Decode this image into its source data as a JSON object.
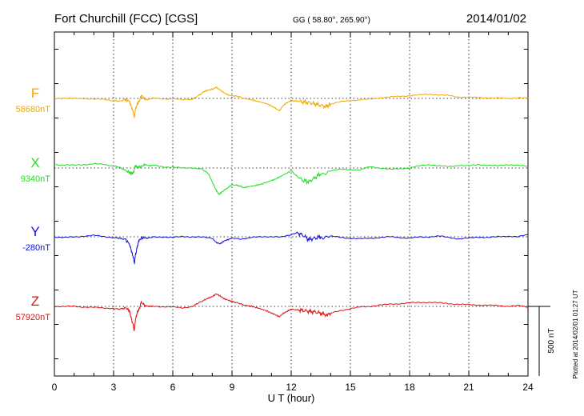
{
  "header": {
    "station": "Fort Churchill (FCC)  [CGS]",
    "coords": "GG ( 58.80°, 265.90°)",
    "date": "2014/01/02"
  },
  "side_note": "Plotted at 2014/02/01 01:27 UT",
  "chart_data": {
    "type": "line",
    "title": "Fort Churchill (FCC)  [CGS]",
    "xlabel": "U T (hour)",
    "ylabel": "",
    "xlim": [
      0,
      24
    ],
    "x_ticks": [
      0,
      3,
      6,
      9,
      12,
      15,
      18,
      21,
      24
    ],
    "x_tick_labels": [
      "0",
      "3",
      "6",
      "9",
      "12",
      "15",
      "18",
      "21",
      "24"
    ],
    "grid": true,
    "scale_bar": {
      "value": 500,
      "label": "500 nT"
    },
    "series": [
      {
        "name": "F",
        "baseline_label": "58680nT",
        "baseline": 58680,
        "color": "#f0a800",
        "x": [
          0,
          0.5,
          1,
          1.5,
          2,
          2.5,
          3,
          3.3,
          3.6,
          3.8,
          3.9,
          4.0,
          4.05,
          4.1,
          4.2,
          4.3,
          4.4,
          4.6,
          4.8,
          5,
          5.5,
          6,
          6.5,
          7,
          7.3,
          7.6,
          7.8,
          8.0,
          8.2,
          8.4,
          8.6,
          8.8,
          9.0,
          9.3,
          9.6,
          10,
          10.4,
          10.8,
          11.2,
          11.4,
          11.6,
          11.8,
          12,
          12.3,
          12.6,
          12.9,
          13.2,
          13.5,
          13.8,
          14,
          14.5,
          15,
          15.5,
          16,
          16.5,
          17,
          17.5,
          18,
          18.5,
          19,
          19.5,
          20,
          20.5,
          21,
          21.5,
          22,
          22.5,
          23,
          23.5,
          24
        ],
        "values": [
          58680,
          58682,
          58678,
          58680,
          58676,
          58672,
          58665,
          58660,
          58670,
          58660,
          58620,
          58580,
          58540,
          58600,
          58640,
          58660,
          58700,
          58670,
          58675,
          58680,
          58676,
          58678,
          58670,
          58675,
          58700,
          58730,
          58740,
          58745,
          58760,
          58740,
          58720,
          58705,
          58700,
          58695,
          58680,
          58670,
          58655,
          58640,
          58610,
          58590,
          58630,
          58650,
          58665,
          58660,
          58655,
          58650,
          58640,
          58630,
          58620,
          58640,
          58655,
          58665,
          58670,
          58675,
          58685,
          58690,
          58695,
          58700,
          58705,
          58710,
          58705,
          58700,
          58690,
          58688,
          58685,
          58684,
          58682,
          58680,
          58685,
          58680
        ]
      },
      {
        "name": "X",
        "baseline_label": "9340nT",
        "baseline": 9340,
        "color": "#22dd22",
        "x": [
          0,
          0.5,
          1,
          1.5,
          2,
          2.5,
          3,
          3.3,
          3.6,
          3.8,
          3.9,
          4.0,
          4.05,
          4.1,
          4.2,
          4.4,
          4.6,
          4.8,
          5,
          5.5,
          6,
          6.5,
          7,
          7.5,
          7.8,
          8.0,
          8.2,
          8.35,
          8.5,
          8.8,
          9.0,
          9.3,
          9.6,
          10,
          10.4,
          10.8,
          11.2,
          11.6,
          12,
          12.3,
          12.6,
          12.9,
          13.2,
          13.5,
          14,
          14.5,
          15,
          15.5,
          16,
          16.5,
          17,
          17.5,
          18,
          18.5,
          19,
          19.5,
          20,
          20.5,
          21,
          21.5,
          22,
          22.5,
          23,
          23.5,
          24
        ],
        "values": [
          9365,
          9362,
          9360,
          9365,
          9370,
          9365,
          9355,
          9345,
          9320,
          9310,
          9300,
          9305,
          9330,
          9360,
          9345,
          9350,
          9365,
          9355,
          9360,
          9350,
          9345,
          9340,
          9342,
          9330,
          9300,
          9240,
          9180,
          9150,
          9170,
          9200,
          9220,
          9215,
          9200,
          9210,
          9220,
          9240,
          9260,
          9290,
          9320,
          9280,
          9250,
          9240,
          9270,
          9300,
          9320,
          9330,
          9330,
          9325,
          9350,
          9340,
          9330,
          9335,
          9340,
          9355,
          9365,
          9355,
          9350,
          9360,
          9355,
          9365,
          9360,
          9355,
          9365,
          9360,
          9350
        ]
      },
      {
        "name": "Y",
        "baseline_label": "-280nT",
        "baseline": -280,
        "color": "#1010dd",
        "x": [
          0,
          0.5,
          1,
          1.5,
          2,
          2.5,
          3,
          3.3,
          3.6,
          3.8,
          3.9,
          4.0,
          4.05,
          4.1,
          4.2,
          4.3,
          4.5,
          4.7,
          5,
          5.5,
          6,
          6.5,
          7,
          7.5,
          8.0,
          8.2,
          8.4,
          8.6,
          8.8,
          9.0,
          9.5,
          10,
          10.5,
          11,
          11.5,
          12,
          12.3,
          12.6,
          12.9,
          13.2,
          13.5,
          14,
          14.5,
          15,
          15.5,
          16,
          16.5,
          17,
          17.5,
          18,
          18.5,
          19,
          19.5,
          20,
          20.5,
          21,
          21.5,
          22,
          22.5,
          23,
          23.5,
          24
        ],
        "values": [
          -280,
          -285,
          -282,
          -275,
          -270,
          -278,
          -285,
          -290,
          -300,
          -330,
          -380,
          -430,
          -470,
          -420,
          -350,
          -300,
          -285,
          -290,
          -282,
          -280,
          -285,
          -278,
          -280,
          -283,
          -290,
          -320,
          -330,
          -310,
          -300,
          -290,
          -295,
          -285,
          -280,
          -278,
          -283,
          -265,
          -250,
          -270,
          -300,
          -290,
          -280,
          -275,
          -285,
          -290,
          -295,
          -290,
          -285,
          -280,
          -285,
          -290,
          -282,
          -280,
          -275,
          -285,
          -295,
          -290,
          -282,
          -285,
          -280,
          -275,
          -280,
          -265
        ]
      },
      {
        "name": "Z",
        "baseline_label": "57920nT",
        "baseline": 57920,
        "color": "#e01010",
        "x": [
          0,
          0.5,
          1,
          1.5,
          2,
          2.5,
          3,
          3.3,
          3.6,
          3.8,
          3.9,
          4.0,
          4.05,
          4.1,
          4.2,
          4.3,
          4.4,
          4.6,
          4.8,
          5,
          5.5,
          6,
          6.5,
          7,
          7.3,
          7.6,
          7.8,
          8.0,
          8.2,
          8.4,
          8.6,
          8.8,
          9.0,
          9.3,
          9.6,
          10,
          10.4,
          10.8,
          11.2,
          11.4,
          11.6,
          11.8,
          12,
          12.3,
          12.6,
          12.9,
          13.2,
          13.5,
          13.8,
          14,
          14.5,
          15,
          15.5,
          16,
          16.5,
          17,
          17.5,
          18,
          18.5,
          19,
          19.5,
          20,
          20.5,
          21,
          21.5,
          22,
          22.5,
          23,
          23.5,
          24
        ],
        "values": [
          57920,
          57918,
          57922,
          57915,
          57912,
          57910,
          57905,
          57900,
          57910,
          57890,
          57830,
          57780,
          57740,
          57820,
          57880,
          57900,
          57950,
          57925,
          57920,
          57922,
          57918,
          57915,
          57910,
          57920,
          57945,
          57965,
          57980,
          57990,
          58010,
          57995,
          57975,
          57965,
          57955,
          57945,
          57930,
          57920,
          57905,
          57885,
          57860,
          57845,
          57870,
          57885,
          57900,
          57895,
          57890,
          57885,
          57880,
          57870,
          57860,
          57870,
          57890,
          57905,
          57915,
          57920,
          57930,
          57935,
          57940,
          57945,
          57948,
          57950,
          57945,
          57940,
          57935,
          57932,
          57930,
          57928,
          57925,
          57922,
          57925,
          57915
        ]
      }
    ]
  }
}
